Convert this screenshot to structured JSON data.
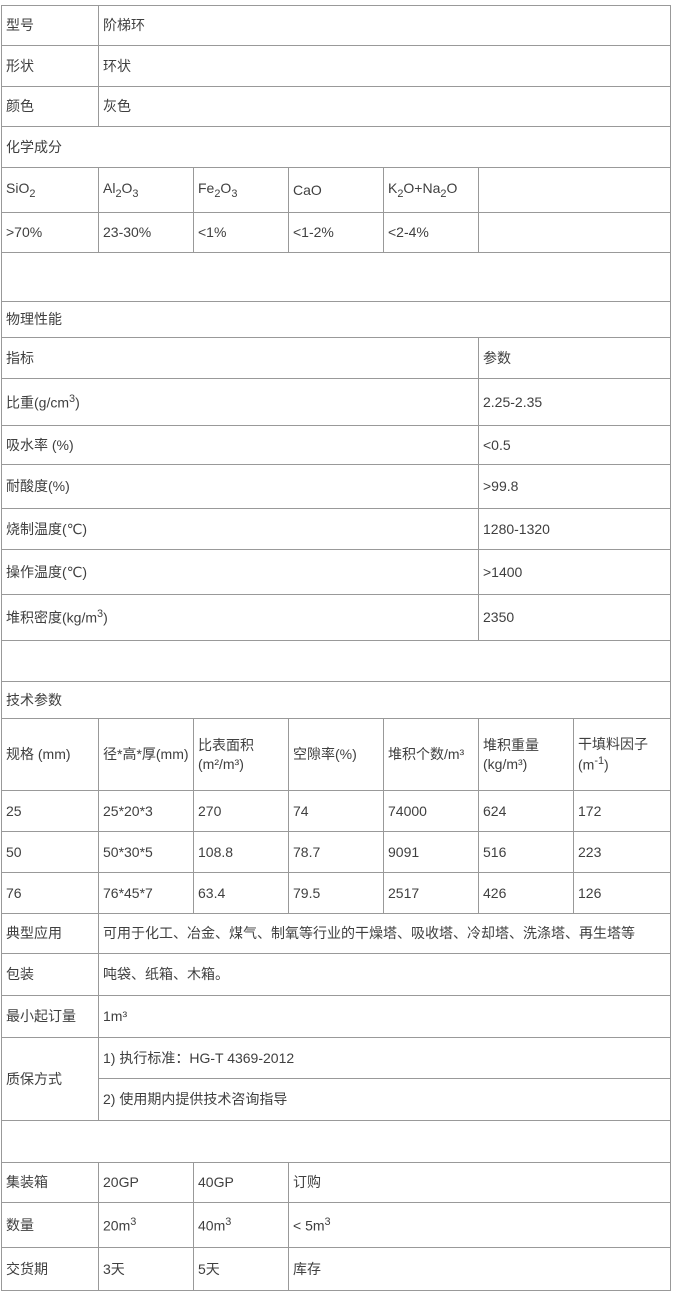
{
  "basic": {
    "rows": [
      {
        "label": "型号",
        "value": "阶梯环"
      },
      {
        "label": "形状",
        "value": "环状"
      },
      {
        "label": "颜色",
        "value": "灰色"
      }
    ]
  },
  "chemistry": {
    "section_title": "化学成分",
    "headers": [
      "SiO_{2}",
      "Al_{2}O_{3}",
      "Fe_{2}O_{3}",
      "CaO",
      "K_{2}O+Na_{2}O"
    ],
    "values": [
      ">70%",
      "23-30%",
      "<1%",
      "<1-2%",
      "<2-4%"
    ]
  },
  "physical": {
    "section_title": "物理性能",
    "indicator_header": "指标",
    "parameter_header": "参数",
    "rows": [
      {
        "label": "比重(g/cm^{3})",
        "value": "2.25-2.35"
      },
      {
        "label": "吸水率 (%)",
        "value": "<0.5"
      },
      {
        "label": "耐酸度(%)",
        "value": ">99.8"
      },
      {
        "label": "烧制温度(℃)",
        "value": "1280-1320"
      },
      {
        "label": "操作温度(℃)",
        "value": ">1400"
      },
      {
        "label": "堆积密度(kg/m^{3})",
        "value": "2350"
      }
    ]
  },
  "technical": {
    "section_title": "技术参数",
    "headers": [
      {
        "l1": "规格 (mm)",
        "l2": ""
      },
      {
        "l1": "径*高*厚(mm)",
        "l2": ""
      },
      {
        "l1": "比表面积",
        "l2": "(m²/m³)"
      },
      {
        "l1": "空隙率(%)",
        "l2": ""
      },
      {
        "l1": "堆积个数/m³",
        "l2": ""
      },
      {
        "l1": "堆积重量(kg/m³)",
        "l2": ""
      },
      {
        "l1": "干填料因子(m^{-1})",
        "l2": ""
      }
    ],
    "rows": [
      [
        "25",
        "25*20*3",
        "270",
        "74",
        "74000",
        "624",
        "172"
      ],
      [
        "50",
        "50*30*5",
        "108.8",
        "78.7",
        "9091",
        "516",
        "223"
      ],
      [
        "76",
        "76*45*7",
        "63.4",
        "79.5",
        "2517",
        "426",
        "126"
      ]
    ]
  },
  "application": {
    "label": "典型应用",
    "value": "可用于化工、冶金、煤气、制氧等行业的干燥塔、吸收塔、冷却塔、洗涤塔、再生塔等"
  },
  "packing": {
    "label": "包装",
    "value": "吨袋、纸箱、木箱。"
  },
  "moq": {
    "label": "最小起订量",
    "value": "1m³"
  },
  "warranty": {
    "label": "质保方式",
    "items": [
      "1) 执行标准：HG-T 4369-2012",
      "2) 使用期内提供技术咨询指导"
    ]
  },
  "shipping": {
    "rows": [
      {
        "label": "集装箱",
        "c1": "20GP",
        "c2": "40GP",
        "c3": "订购"
      },
      {
        "label": "数量",
        "c1": "20m^{3}",
        "c2": "40m^{3}",
        "c3": "< 5m^{3}"
      },
      {
        "label": "交货期",
        "c1": "3天",
        "c2": "5天",
        "c3": "库存"
      }
    ]
  }
}
